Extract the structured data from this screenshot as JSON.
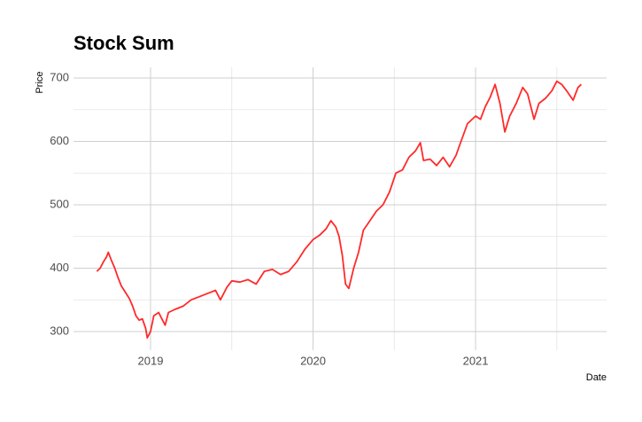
{
  "chart_data": {
    "type": "line",
    "title": "Stock Sum",
    "x_label": "Date",
    "y_label": "Price",
    "x": [
      2018.67,
      2018.69,
      2018.71,
      2018.73,
      2018.74,
      2018.76,
      2018.78,
      2018.8,
      2018.82,
      2018.85,
      2018.87,
      2018.89,
      2018.91,
      2018.93,
      2018.95,
      2018.97,
      2018.98,
      2019.0,
      2019.02,
      2019.05,
      2019.07,
      2019.09,
      2019.11,
      2019.15,
      2019.2,
      2019.25,
      2019.3,
      2019.35,
      2019.4,
      2019.43,
      2019.47,
      2019.5,
      2019.55,
      2019.6,
      2019.65,
      2019.7,
      2019.75,
      2019.8,
      2019.85,
      2019.9,
      2019.95,
      2020.0,
      2020.04,
      2020.08,
      2020.11,
      2020.14,
      2020.16,
      2020.18,
      2020.2,
      2020.22,
      2020.25,
      2020.28,
      2020.31,
      2020.35,
      2020.39,
      2020.43,
      2020.47,
      2020.51,
      2020.55,
      2020.59,
      2020.63,
      2020.66,
      2020.68,
      2020.72,
      2020.76,
      2020.8,
      2020.84,
      2020.88,
      2020.91,
      2020.95,
      2021.0,
      2021.03,
      2021.06,
      2021.09,
      2021.12,
      2021.15,
      2021.18,
      2021.21,
      2021.25,
      2021.29,
      2021.32,
      2021.36,
      2021.39,
      2021.43,
      2021.47,
      2021.5,
      2021.53,
      2021.56,
      2021.6,
      2021.63,
      2021.65
    ],
    "values": [
      395,
      400,
      410,
      418,
      425,
      412,
      400,
      385,
      372,
      360,
      352,
      340,
      325,
      318,
      320,
      305,
      290,
      300,
      325,
      330,
      320,
      310,
      330,
      335,
      340,
      350,
      355,
      360,
      365,
      350,
      370,
      380,
      378,
      382,
      375,
      395,
      398,
      390,
      395,
      410,
      430,
      445,
      452,
      462,
      475,
      465,
      450,
      420,
      375,
      368,
      400,
      425,
      460,
      475,
      490,
      500,
      520,
      550,
      555,
      575,
      585,
      598,
      570,
      572,
      562,
      575,
      560,
      578,
      600,
      628,
      640,
      635,
      655,
      670,
      690,
      660,
      615,
      640,
      660,
      685,
      675,
      635,
      660,
      668,
      680,
      695,
      690,
      680,
      665,
      685,
      690
    ],
    "color": "#ff2a2a",
    "xlim": [
      2018.526,
      2021.806
    ],
    "xticks": [
      2019,
      2020,
      2021
    ],
    "ylim": [
      270.6,
      716.8
    ],
    "yticks": [
      300,
      400,
      500,
      600,
      700
    ],
    "grid": true
  }
}
